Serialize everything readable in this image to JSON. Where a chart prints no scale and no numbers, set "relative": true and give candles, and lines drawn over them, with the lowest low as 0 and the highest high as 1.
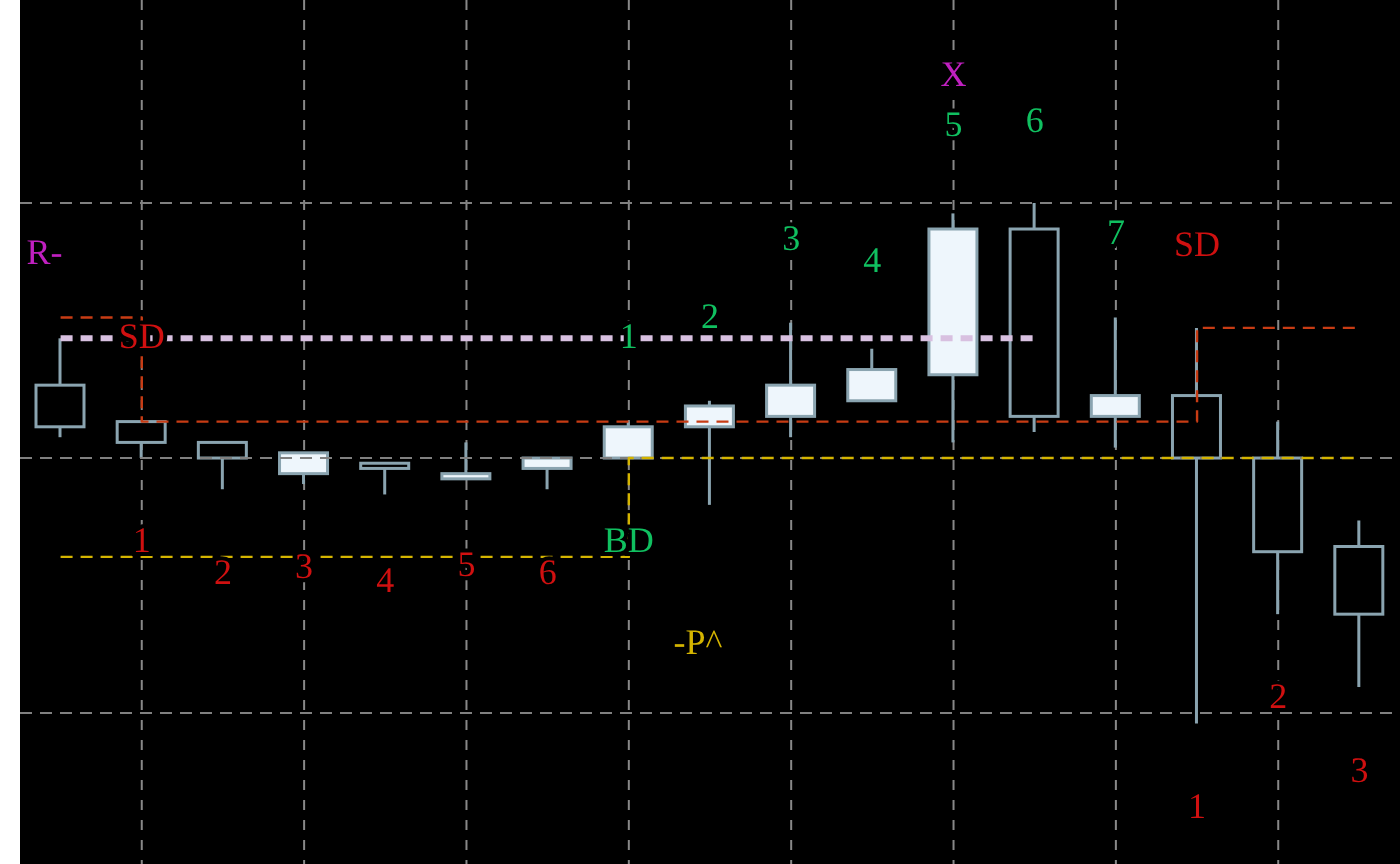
{
  "chart_data": {
    "type": "candlestick",
    "relative": true,
    "categories": [
      null,
      null,
      null,
      null,
      null,
      null,
      null,
      null,
      null,
      null,
      null,
      null,
      null,
      null,
      null,
      null,
      null
    ],
    "ohlc": [
      [
        0.65,
        0.74,
        0.55,
        0.57
      ],
      [
        0.58,
        0.58,
        0.51,
        0.54
      ],
      [
        0.54,
        0.54,
        0.45,
        0.51
      ],
      [
        0.48,
        0.52,
        0.46,
        0.52
      ],
      [
        0.5,
        0.5,
        0.44,
        0.49
      ],
      [
        0.47,
        0.54,
        0.47,
        0.48
      ],
      [
        0.49,
        0.51,
        0.45,
        0.51
      ],
      [
        0.51,
        0.58,
        0.51,
        0.57
      ],
      [
        0.57,
        0.62,
        0.42,
        0.61
      ],
      [
        0.59,
        0.77,
        0.55,
        0.65
      ],
      [
        0.62,
        0.72,
        0.62,
        0.68
      ],
      [
        0.67,
        0.98,
        0.54,
        0.95
      ],
      [
        0.95,
        1.0,
        0.56,
        0.59
      ],
      [
        0.59,
        0.78,
        0.53,
        0.63
      ],
      [
        0.63,
        0.76,
        0,
        0.51
      ],
      [
        0.51,
        0.58,
        0.21,
        0.33
      ],
      [
        0.34,
        0.39,
        0.07,
        0.21
      ]
    ],
    "color": "#8aa4b0",
    "colors": [
      "#000000",
      "#000000",
      "#000000",
      "#eef6fc",
      "#000000",
      "#eef6fc",
      "#eef6fc",
      "#eef6fc",
      "#eef6fc",
      "#eef6fc",
      "#eef6fc",
      "#eef6fc",
      "#000000",
      "#eef6fc",
      "#000000",
      "#000000",
      "#000000"
    ],
    "series": [
      {
        "type": "step",
        "color": "#c83c14",
        "line_style": "dashed",
        "values": [
          0.78,
          0.58,
          0.58,
          0.58,
          0.58,
          0.58,
          0.58,
          0.58,
          0.58,
          0.58,
          0.58,
          0.58,
          0.58,
          0.58,
          0.76,
          0.76,
          0.76
        ]
      },
      {
        "type": "step",
        "color": "#d4b400",
        "line_style": "dashed",
        "values": [
          0.32,
          0.32,
          0.32,
          0.32,
          0.32,
          0.32,
          0.32,
          0.51,
          0.51,
          0.51,
          0.51,
          0.51,
          0.51,
          0.51,
          0.51,
          0.51,
          0.51
        ]
      },
      {
        "type": "step",
        "color": "#d8c0e0",
        "line_style": "dashed",
        "values": [
          0.74,
          0.74,
          0.74,
          0.74,
          0.74,
          0.74,
          0.74,
          0.74,
          0.74,
          0.74,
          0.74,
          0.74,
          0.74,
          null,
          null,
          null,
          null
        ]
      }
    ],
    "ref_lines": [
      {
        "axis": "y",
        "value": 1.0,
        "color": "#808080",
        "line_style": "dashed"
      },
      {
        "axis": "y",
        "value": 0.51,
        "color": "#808080",
        "line_style": "dashed"
      },
      {
        "axis": "y",
        "value": 0.02,
        "color": "#808080",
        "line_style": "dashed"
      }
    ],
    "annotations": [
      "R-",
      "SD",
      "1",
      "2",
      "3",
      "4",
      "5",
      "6",
      "1",
      "BD",
      "2",
      "3",
      "4",
      "X",
      "5",
      "6",
      "7",
      "SD",
      "-P^",
      "1",
      "2",
      "3"
    ],
    "grid": "x"
  }
}
